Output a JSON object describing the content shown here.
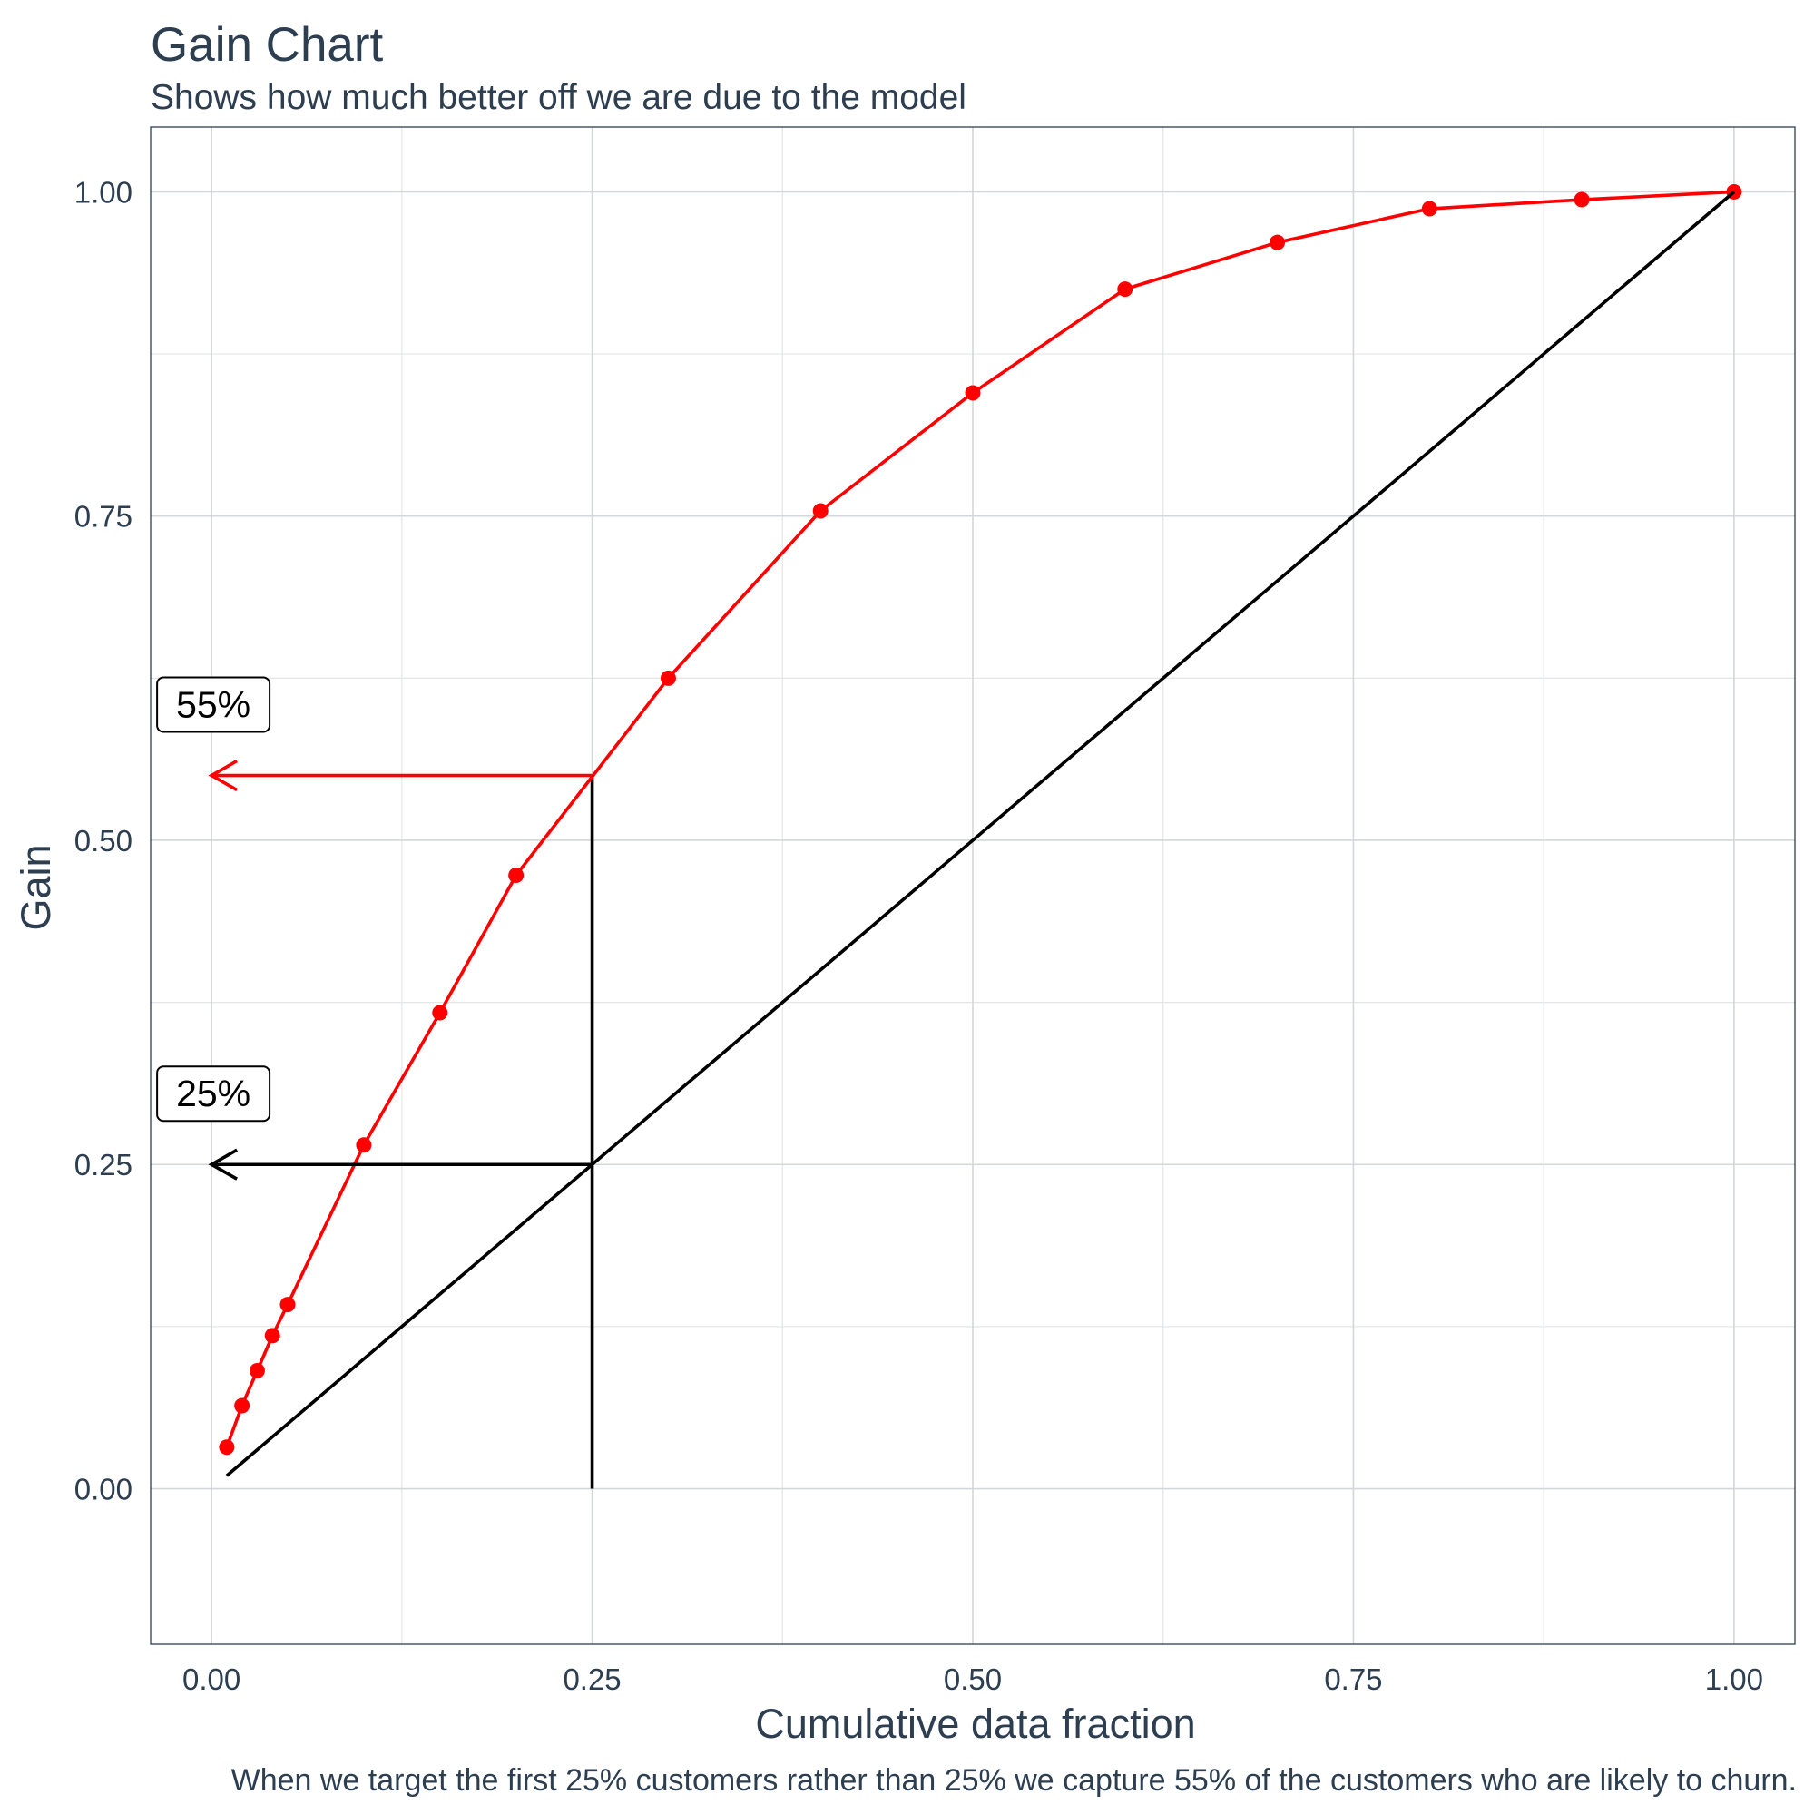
{
  "chart_data": {
    "type": "line",
    "title": "Gain Chart",
    "subtitle": "Shows how much better off we are due to the model",
    "xlabel": "Cumulative data fraction",
    "ylabel": "Gain",
    "caption": "When we target the first 25% customers rather than 25% we capture 55% of the customers who are likely to churn.",
    "xlim": [
      -0.04,
      1.04
    ],
    "ylim": [
      -0.12,
      1.05
    ],
    "x_ticks": [
      0,
      0.25,
      0.5,
      0.75,
      1
    ],
    "x_tick_labels": [
      "0.00",
      "0.25",
      "0.50",
      "0.75",
      "1.00"
    ],
    "y_ticks": [
      0,
      0.25,
      0.5,
      0.75,
      1
    ],
    "y_tick_labels": [
      "0.00",
      "0.25",
      "0.50",
      "0.75",
      "1.00"
    ],
    "grid": true,
    "series": [
      {
        "color": "#ff0000",
        "markers": true,
        "x": [
          0.01,
          0.02,
          0.03,
          0.04,
          0.05,
          0.1,
          0.15,
          0.2,
          0.3,
          0.4,
          0.5,
          0.6,
          0.7,
          0.8,
          0.9,
          1.0
        ],
        "y": [
          0.032,
          0.064,
          0.091,
          0.118,
          0.142,
          0.265,
          0.367,
          0.473,
          0.625,
          0.754,
          0.845,
          0.925,
          0.961,
          0.987,
          0.994,
          1.0
        ]
      },
      {
        "color": "#000000",
        "markers": false,
        "x": [
          0.01,
          1.0
        ],
        "y": [
          0.01,
          1.0
        ]
      }
    ],
    "reference_lines": [
      {
        "color": "#000000",
        "from": [
          0.25,
          0
        ],
        "to": [
          0.25,
          0.55
        ]
      }
    ],
    "annotations": [
      {
        "label": "55%",
        "x": 0.25,
        "y": 0.55,
        "color": "#ff0000",
        "arrow_to": [
          0,
          0.55
        ]
      },
      {
        "label": "25%",
        "x": 0.25,
        "y": 0.25,
        "color": "#000000",
        "arrow_to": [
          0,
          0.25
        ]
      }
    ]
  }
}
